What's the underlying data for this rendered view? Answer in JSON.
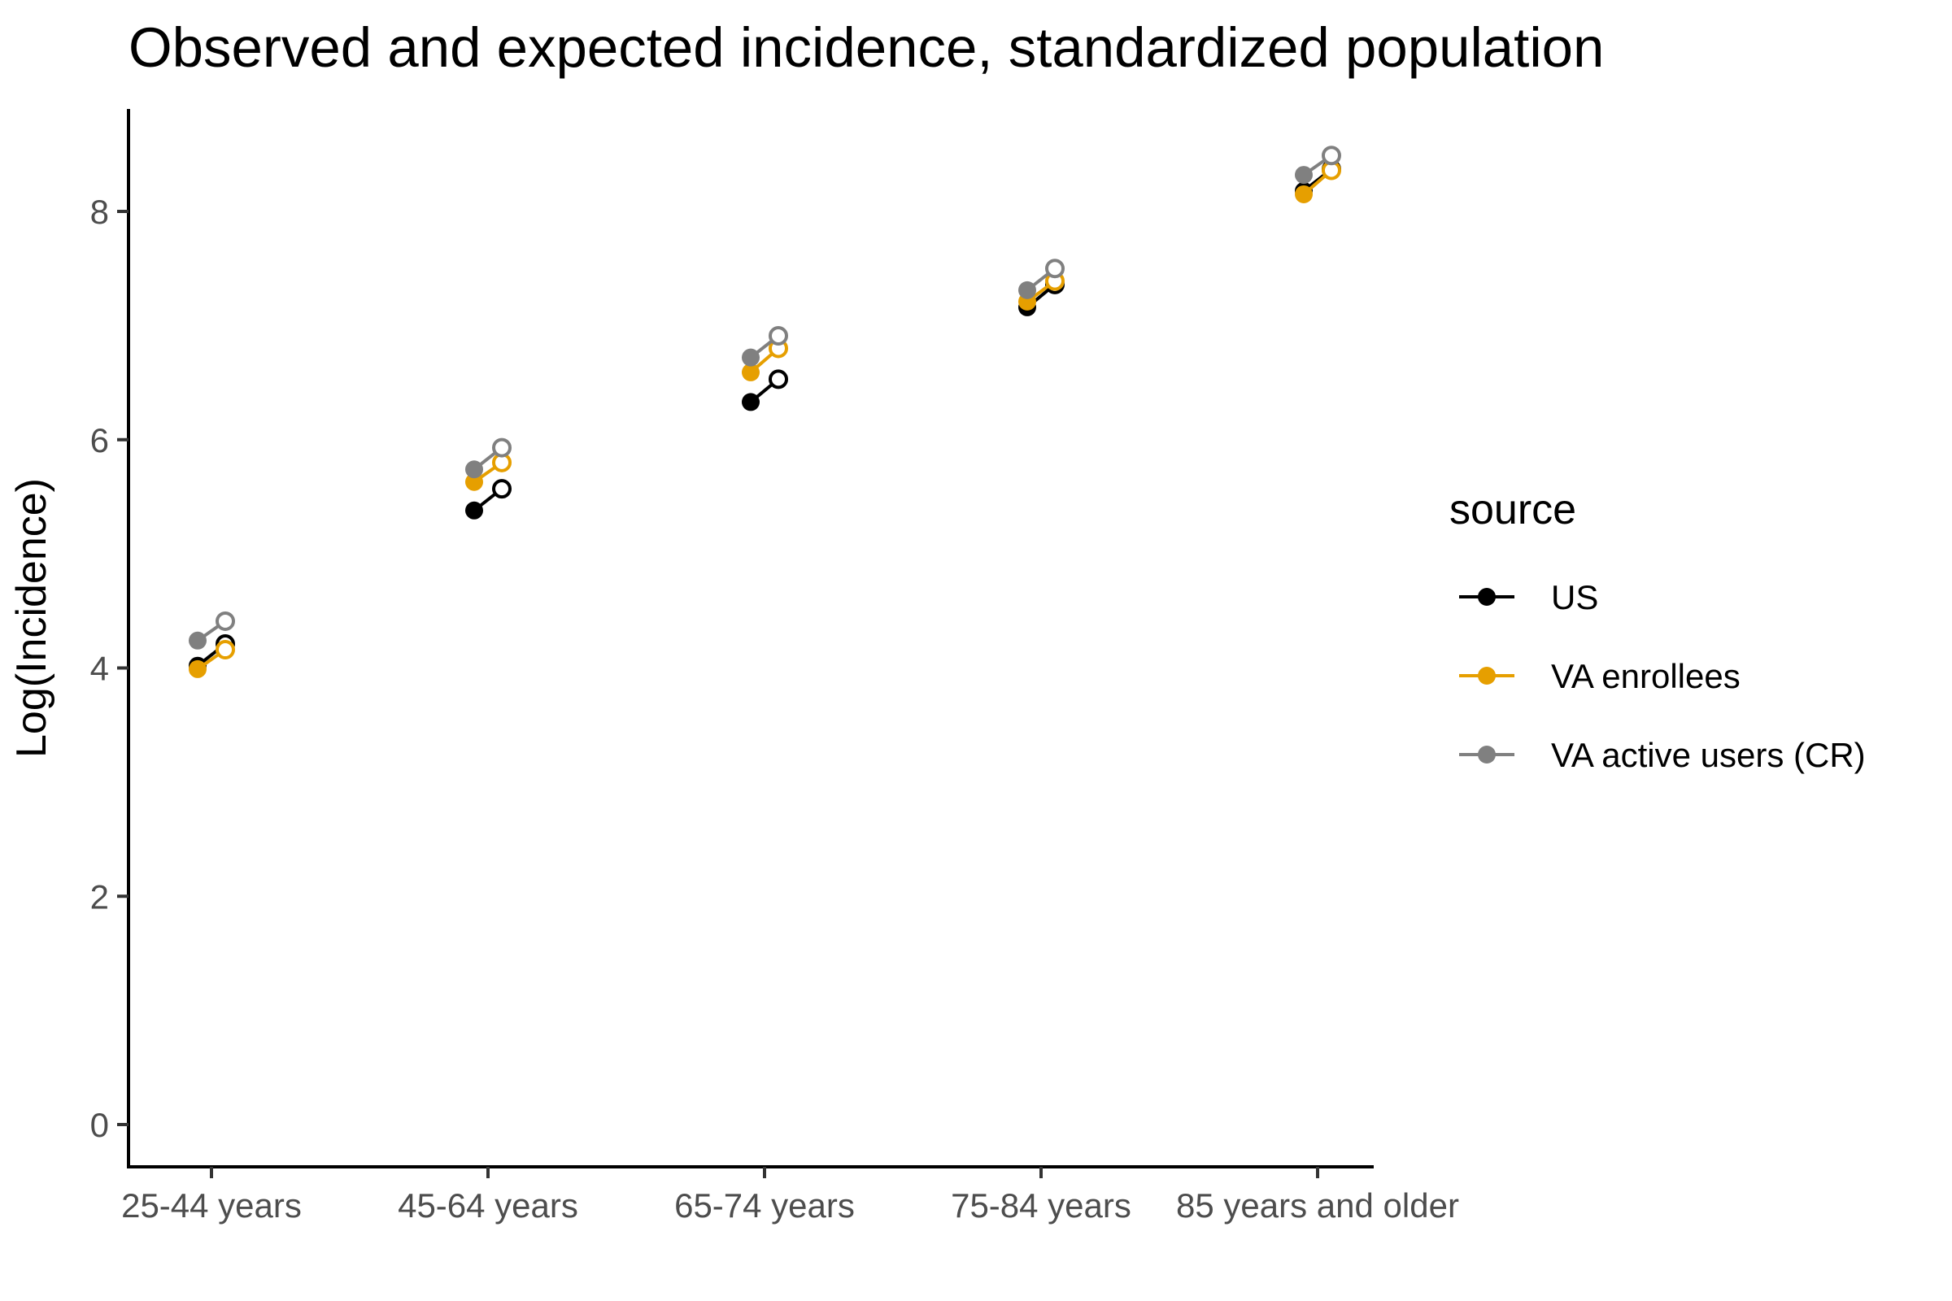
{
  "chart_data": {
    "type": "scatter",
    "title": "Observed and expected incidence, standardized population",
    "xlabel": "",
    "ylabel": "Log(Incidence)",
    "ylim": [
      -0.4,
      8.9
    ],
    "yticks": [
      0,
      2,
      4,
      6,
      8
    ],
    "categories": [
      "25-44 years",
      "45-64 years",
      "65-74 years",
      "75-84 years",
      "85 years and older"
    ],
    "point_pairs": [
      "observed",
      "expected"
    ],
    "legend": {
      "title": "source",
      "placement": "right"
    },
    "grid": false,
    "series": [
      {
        "name": "US",
        "color": "#000000",
        "observed": [
          4.02,
          5.38,
          6.33,
          7.16,
          8.18
        ],
        "expected": [
          4.21,
          5.57,
          6.53,
          7.36,
          8.37
        ]
      },
      {
        "name": "VA enrollees",
        "color": "#E69F00",
        "observed": [
          3.99,
          5.63,
          6.59,
          7.21,
          8.15
        ],
        "expected": [
          4.16,
          5.8,
          6.8,
          7.39,
          8.36
        ]
      },
      {
        "name": "VA active users (CR)",
        "color": "#808080",
        "observed": [
          4.24,
          5.74,
          6.72,
          7.31,
          8.32
        ],
        "expected": [
          4.41,
          5.93,
          6.91,
          7.5,
          8.49
        ]
      }
    ]
  }
}
